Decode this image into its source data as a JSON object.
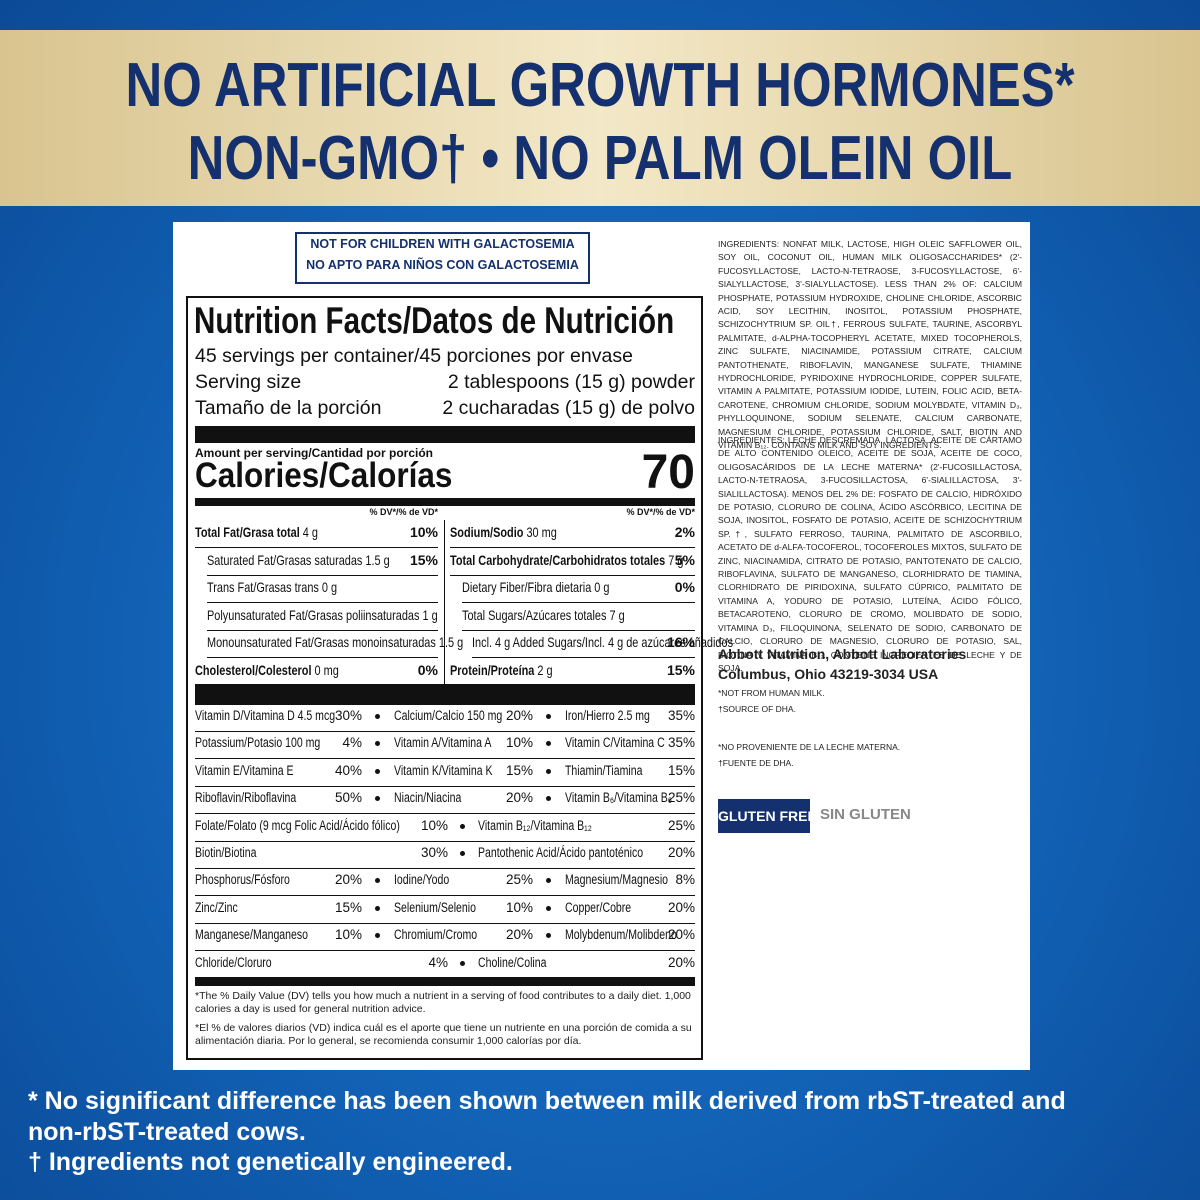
{
  "banner": {
    "line1": "NO ARTIFICIAL GROWTH HORMONES*",
    "line2": "NON-GMO† • NO PALM OLEIN OIL"
  },
  "warning": {
    "en": "NOT FOR CHILDREN WITH GALACTOSEMIA",
    "es": "NO APTO PARA NIÑOS CON GALACTOSEMIA"
  },
  "nutrition": {
    "title": "Nutrition Facts/Datos de Nutrición",
    "servings": "45 servings per container/45 porciones por envase",
    "serving_size": {
      "label": "Serving size",
      "value": "2 tablespoons (15 g) powder"
    },
    "serving_size_es": {
      "label": "Tamaño de la porción",
      "value": "2 cucharadas (15 g) de polvo"
    },
    "amount_per_serving": "Amount per serving/Cantidad por porción",
    "calories_label": "Calories/Calorías",
    "calories_value": 70,
    "dv_header": "% DV*/% de VD*",
    "left_rows": [
      {
        "name": "Total Fat/Grasa total",
        "amount": "4 g",
        "dv": "10%",
        "level": 0
      },
      {
        "name": "Saturated Fat/Grasas saturadas",
        "amount": "1.5 g",
        "dv": "15%",
        "level": 1
      },
      {
        "name": "Trans Fat/Grasas trans",
        "amount": "0 g",
        "level": 1
      },
      {
        "name": "Polyunsaturated Fat/Grasas poliinsaturadas",
        "amount": "1 g",
        "level": 1
      },
      {
        "name": "Monounsaturated Fat/Grasas monoinsaturadas",
        "amount": "1.5 g",
        "level": 1
      },
      {
        "name": "Cholesterol/Colesterol",
        "amount": "0 mg",
        "dv": "0%",
        "level": 0
      }
    ],
    "right_rows": [
      {
        "name": "Sodium/Sodio",
        "amount": "30 mg",
        "dv": "2%",
        "level": 0
      },
      {
        "name": "Total Carbohydrate/Carbohidratos totales",
        "amount": "7 g",
        "dv": "5%",
        "level": 0
      },
      {
        "name": "Dietary Fiber/Fibra dietaria",
        "amount": "0 g",
        "dv": "0%",
        "level": 1
      },
      {
        "name": "Total Sugars/Azúcares totales",
        "amount": "7 g",
        "level": 1
      },
      {
        "name": "Incl. 4 g Added Sugars/Incl. 4 g de azúcares añadidos",
        "dv": "16%",
        "level": 2
      },
      {
        "name": "Protein/Proteína",
        "amount": "2 g",
        "dv": "15%",
        "level": 0
      }
    ],
    "vitamin_rows": [
      [
        {
          "name": "Vitamin D/Vitamina D 4.5 mcg",
          "dv": "30%"
        },
        {
          "name": "Calcium/Calcio 150 mg",
          "dv": "20%"
        },
        {
          "name": "Iron/Hierro 2.5 mg",
          "dv": "35%"
        }
      ],
      [
        {
          "name": "Potassium/Potasio 100 mg",
          "dv": "4%"
        },
        {
          "name": "Vitamin A/Vitamina A",
          "dv": "10%"
        },
        {
          "name": "Vitamin C/Vitamina C",
          "dv": "35%"
        }
      ],
      [
        {
          "name": "Vitamin E/Vitamina E",
          "dv": "40%"
        },
        {
          "name": "Vitamin K/Vitamina K",
          "dv": "15%"
        },
        {
          "name": "Thiamin/Tiamina",
          "dv": "15%"
        }
      ],
      [
        {
          "name": "Riboflavin/Riboflavina",
          "dv": "50%"
        },
        {
          "name": "Niacin/Niacina",
          "dv": "20%"
        },
        {
          "name": "Vitamin B₆/Vitamina B₆",
          "dv": "25%"
        }
      ],
      [
        {
          "name": "Folate/Folato (9 mcg Folic Acid/Ácido fólico)",
          "dv": "10%"
        },
        {
          "name": "Vitamin B₁₂/Vitamina B₁₂",
          "dv": "25%"
        }
      ],
      [
        {
          "name": "Biotin/Biotina",
          "dv": "30%"
        },
        {
          "name": "Pantothenic Acid/Ácido pantoténico",
          "dv": "20%"
        }
      ],
      [
        {
          "name": "Phosphorus/Fósforo",
          "dv": "20%"
        },
        {
          "name": "Iodine/Yodo",
          "dv": "25%"
        },
        {
          "name": "Magnesium/Magnesio",
          "dv": "8%"
        }
      ],
      [
        {
          "name": "Zinc/Zinc",
          "dv": "15%"
        },
        {
          "name": "Selenium/Selenio",
          "dv": "10%"
        },
        {
          "name": "Copper/Cobre",
          "dv": "20%"
        }
      ],
      [
        {
          "name": "Manganese/Manganeso",
          "dv": "10%"
        },
        {
          "name": "Chromium/Cromo",
          "dv": "20%"
        },
        {
          "name": "Molybdenum/Molibdeno",
          "dv": "20%"
        }
      ],
      [
        {
          "name": "Chloride/Cloruro",
          "dv": "4%"
        },
        {
          "name": "Choline/Colina",
          "dv": "20%"
        }
      ]
    ],
    "footnote_en": "*The % Daily Value (DV) tells you how much a nutrient in a serving of food contributes to a daily diet. 1,000 calories a day is used for general nutrition advice.",
    "footnote_es": "*El % de valores diarios (VD) indica cuál es el aporte que tiene un nutriente en una porción de comida a su alimentación diaria. Por lo general, se recomienda consumir 1,000 calorías por día."
  },
  "ingredients_en": "INGREDIENTS: NONFAT MILK, LACTOSE, HIGH OLEIC SAFFLOWER OIL, SOY OIL, COCONUT OIL, HUMAN MILK OLIGOSACCHARIDES* (2'-FUCOSYLLACTOSE, LACTO-N-TETRAOSE, 3-FUCOSYLLACTOSE, 6'-SIALYLLACTOSE, 3'-SIALYLLACTOSE). LESS THAN 2% OF: CALCIUM PHOSPHATE, POTASSIUM HYDROXIDE, CHOLINE CHLORIDE, ASCORBIC ACID, SOY LECITHIN, INOSITOL, POTASSIUM PHOSPHATE, SCHIZOCHYTRIUM SP. OIL†, FERROUS SULFATE, TAURINE, ASCORBYL PALMITATE, d-ALPHA-TOCOPHERYL ACETATE, MIXED TOCOPHEROLS, ZINC SULFATE, NIACINAMIDE, POTASSIUM CITRATE, CALCIUM PANTOTHENATE, RIBOFLAVIN, MANGANESE SULFATE, THIAMINE HYDROCHLORIDE, PYRIDOXINE HYDROCHLORIDE, COPPER SULFATE, VITAMIN A PALMITATE, POTASSIUM IODIDE, LUTEIN, FOLIC ACID, BETA-CAROTENE, CHROMIUM CHLORIDE, SODIUM MOLYBDATE, VITAMIN D₃, PHYLLOQUINONE, SODIUM SELENATE, CALCIUM CARBONATE, MAGNESIUM CHLORIDE, POTASSIUM CHLORIDE, SALT, BIOTIN AND VITAMIN B₁₂. CONTAINS MILK AND SOY INGREDIENTS.",
  "ingredients_es": "INGREDIENTES: LECHE DESCREMADA, LACTOSA, ACEITE DE CÁRTAMO DE ALTO CONTENIDO OLEICO, ACEITE DE SOJA, ACEITE DE COCO, OLIGOSACÁRIDOS DE LA LECHE MATERNA* (2'-FUCOSILLACTOSA, LACTO-N-TETRAOSA, 3-FUCOSILLACTOSA, 6'-SIALILLACTOSA, 3'-SIALILLACTOSA). MENOS DEL 2% DE: FOSFATO DE CALCIO, HIDRÓXIDO DE POTASIO, CLORURO DE COLINA, ÁCIDO ASCÓRBICO, LECITINA DE SOJA, INOSITOL, FOSFATO DE POTASIO, ACEITE DE SCHIZOCHYTRIUM SP.†, SULFATO FERROSO, TAURINA, PALMITATO DE ASCORBILO, ACETATO DE d-ALFA-TOCOFEROL, TOCOFEROLES MIXTOS, SULFATO DE ZINC, NIACINAMIDA, CITRATO DE POTASIO, PANTOTENATO DE CALCIO, RIBOFLAVINA, SULFATO DE MANGANESO, CLORHIDRATO DE TIAMINA, CLORHIDRATO DE PIRIDOXINA, SULFATO CÚPRICO, PALMITATO DE VITAMINA A, YODURO DE POTASIO, LUTEÍNA, ÁCIDO FÓLICO, BETACAROTENO, CLORURO DE CROMO, MOLIBDATO DE SODIO, VITAMINA D₃, FILOQUINONA, SELENATO DE SODIO, CARBONATO DE CALCIO, CLORURO DE MAGNESIO, CLORURO DE POTASIO, SAL, BIOTINA Y VITAMINA B₁₂. CONTIENE INGREDIENTES DE LECHE Y DE SOJA.",
  "manufacturer": {
    "line1": "Abbott Nutrition, Abbott Laboratories",
    "line2": "Columbus, Ohio 43219-3034 USA"
  },
  "notes_en": [
    "*NOT FROM HUMAN MILK.",
    "†SOURCE OF DHA."
  ],
  "notes_es": [
    "*NO PROVENIENTE DE LA LECHE MATERNA.",
    "†FUENTE DE DHA."
  ],
  "badge": {
    "en": "GLUTEN FREE",
    "es": "SIN GLUTEN"
  },
  "disclaimers": [
    "* No significant difference has been shown between milk derived from rbST-treated and non-rbST-treated cows.",
    "† Ingredients not genetically engineered."
  ]
}
